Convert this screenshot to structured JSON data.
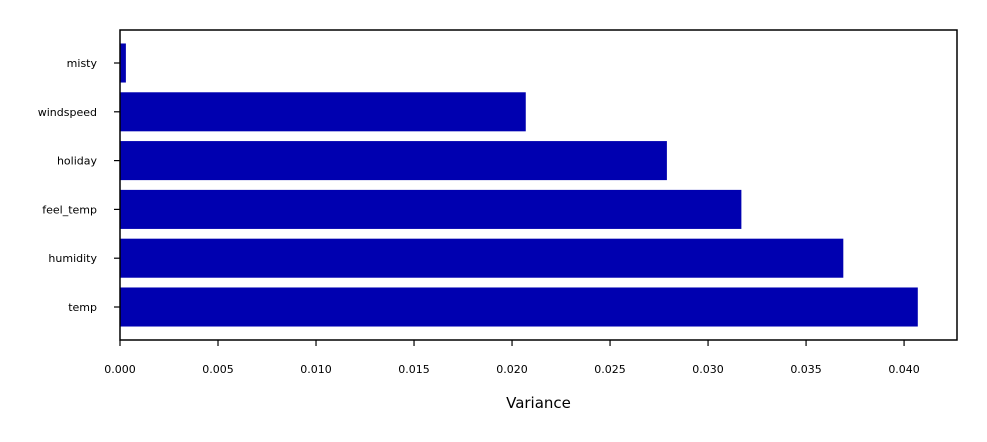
{
  "chart_data": {
    "type": "bar",
    "orientation": "horizontal",
    "title": "",
    "xlabel": "Variance",
    "ylabel": "",
    "categories": [
      "temp",
      "humidity",
      "feel_temp",
      "holiday",
      "windspeed",
      "misty"
    ],
    "values": [
      0.0407,
      0.0369,
      0.0317,
      0.0279,
      0.0207,
      0.0003
    ],
    "xlim": [
      0,
      0.0427
    ],
    "xticks": [
      0.0,
      0.005,
      0.01,
      0.015,
      0.02,
      0.025,
      0.03,
      0.035,
      0.04
    ],
    "xtick_labels": [
      "0.000",
      "0.005",
      "0.010",
      "0.015",
      "0.020",
      "0.025",
      "0.030",
      "0.035",
      "0.040"
    ],
    "grid": false,
    "legend": "none",
    "bar_color": "#0000b0"
  }
}
